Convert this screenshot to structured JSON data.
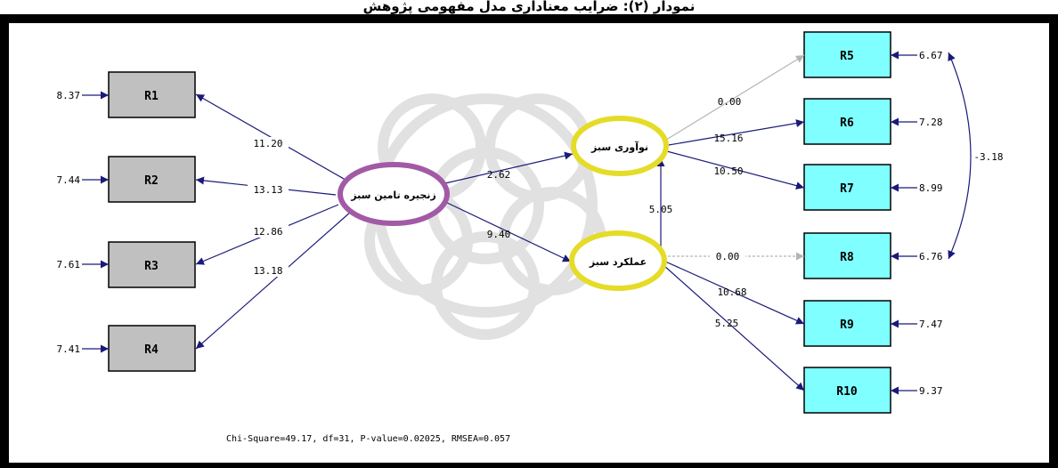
{
  "page": {
    "caption": "نمودار (۲): ضرایب معناداری مدل مفهومی پژوهش"
  },
  "colors": {
    "observed_fill": "#c0c0c0",
    "indicator_fill": "#7fffff",
    "exogenous_ring": "#a25aa6",
    "endogenous_ring": "#e5dc28",
    "path": "#1a1a7a",
    "fixed_path": "#b4b4b4"
  },
  "nodes": {
    "R1": "R1",
    "R2": "R2",
    "R3": "R3",
    "R4": "R4",
    "R5": "R5",
    "R6": "R6",
    "R7": "R7",
    "R8": "R8",
    "R9": "R9",
    "R10": "R10"
  },
  "latents": {
    "supply_chain": "زنجیره تامین سبز",
    "innovation": "نوآوری سبز",
    "performance": "عملکرد سبز"
  },
  "errors": {
    "R1": "8.37",
    "R2": "7.44",
    "R3": "7.61",
    "R4": "7.41",
    "R5": "6.67",
    "R6": "7.28",
    "R7": "8.99",
    "R8": "6.76",
    "R9": "7.47",
    "R10": "9.37"
  },
  "paths": {
    "sc_r1": "11.20",
    "sc_r2": "13.13",
    "sc_r3": "12.86",
    "sc_r4": "13.18",
    "sc_innovation": "2.62",
    "sc_performance": "9.40",
    "performance_innovation": "5.05",
    "innovation_r5": "0.00",
    "innovation_r6": "15.16",
    "innovation_r7": "10.50",
    "performance_r8": "0.00",
    "performance_r9": "10.68",
    "performance_r10": "5.25",
    "cov_r5_r8": "-3.18"
  },
  "fit": "Chi-Square=49.17, df=31, P-value=0.02025, RMSEA=0.057"
}
